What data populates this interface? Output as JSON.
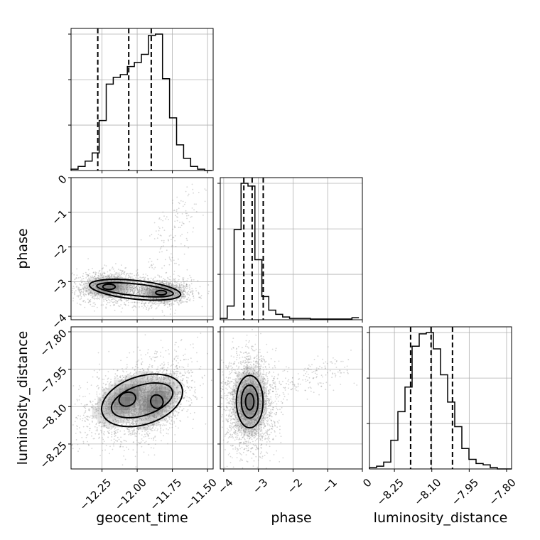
{
  "chart_data": {
    "type": "corner",
    "parameters": [
      "geocent_time",
      "phase",
      "luminosity_distance"
    ],
    "ranges": {
      "geocent_time": [
        -12.47,
        -11.46
      ],
      "phase": [
        -4.1,
        0.0
      ],
      "luminosity_distance": [
        -8.35,
        -7.78
      ]
    },
    "ticks": {
      "geocent_time": [
        -12.25,
        -12.0,
        -11.75,
        -11.5
      ],
      "phase": [
        -4,
        -3,
        -2,
        -1,
        0
      ],
      "luminosity_distance": [
        -8.25,
        -8.1,
        -7.95,
        -7.8
      ]
    },
    "tick_labels": {
      "geocent_time": [
        "−12.25",
        "−12.00",
        "−11.75",
        "−11.50"
      ],
      "phase": [
        "−4",
        "−3",
        "−2",
        "−1",
        "0"
      ],
      "luminosity_distance": [
        "−8.25",
        "−8.10",
        "−7.95",
        "−7.80"
      ]
    },
    "histograms": {
      "geocent_time": {
        "edges_start": -12.47,
        "bin_width": 0.05,
        "counts": [
          1,
          3,
          7,
          13,
          37,
          64,
          69,
          71,
          77,
          80,
          86,
          100,
          101,
          68,
          39,
          19,
          9,
          3,
          1,
          0
        ],
        "quantiles": [
          -12.28,
          -12.06,
          -11.9
        ]
      },
      "phase": {
        "edges_start": -4.1,
        "bin_width": 0.2,
        "counts": [
          1,
          10,
          66,
          100,
          98,
          44,
          17,
          7,
          4,
          2,
          1,
          1,
          1,
          0.5,
          0.5,
          0.5,
          0.5,
          0.5,
          0.5,
          1.5
        ],
        "quantiles": [
          -3.42,
          -3.18,
          -2.86
        ]
      },
      "luminosity_distance": {
        "edges_start": -8.35,
        "bin_width": 0.0285,
        "counts": [
          1,
          2,
          5,
          21,
          42,
          60,
          90,
          99,
          100,
          88,
          69,
          49,
          31,
          15,
          7,
          4,
          3,
          1,
          0,
          0
        ],
        "quantiles": [
          -8.185,
          -8.103,
          -8.017
        ]
      }
    },
    "joint": [
      {
        "x": "geocent_time",
        "y": "phase",
        "mode_centers": [
          [
            -12.2,
            -3.15
          ],
          [
            -11.83,
            -3.32
          ]
        ],
        "spread": [
          [
            0.08,
            0.14
          ],
          [
            0.07,
            0.12
          ]
        ],
        "tail": {
          "from": [
            -11.9,
            -3.0
          ],
          "to": [
            -11.6,
            -0.3
          ]
        }
      },
      {
        "x": "geocent_time",
        "y": "luminosity_distance",
        "mode_centers": [
          [
            -12.07,
            -8.07
          ],
          [
            -11.86,
            -8.08
          ]
        ],
        "spread": [
          [
            0.11,
            0.05
          ],
          [
            0.08,
            0.05
          ]
        ],
        "correlation": 0.5
      },
      {
        "x": "phase",
        "y": "luminosity_distance",
        "mode_centers": [
          [
            -3.25,
            -8.08
          ]
        ],
        "spread": [
          [
            0.22,
            0.06
          ]
        ],
        "tail": {
          "from": [
            -3.0,
            -8.05
          ],
          "to": [
            -0.5,
            -7.95
          ]
        }
      }
    ],
    "grid": true
  }
}
